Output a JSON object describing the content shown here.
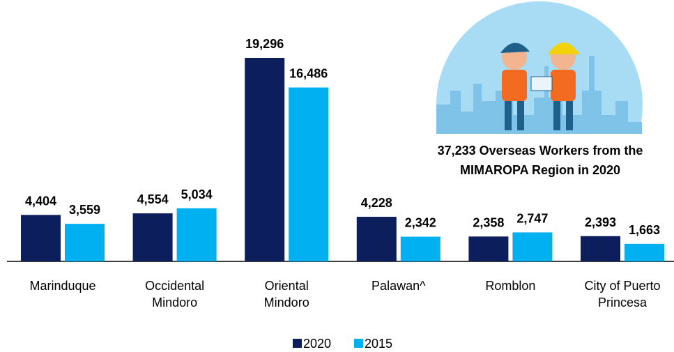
{
  "chart_data": {
    "type": "bar",
    "categories": [
      "Marinduque",
      "Occidental Mindoro",
      "Oriental Mindoro",
      "Palawan^",
      "Romblon",
      "City of Puerto Princesa"
    ],
    "series": [
      {
        "name": "2020",
        "color": "#0c1f5c",
        "values": [
          4404,
          4554,
          19296,
          4228,
          2358,
          2393
        ],
        "value_labels": [
          "4,404",
          "4,554",
          "19,296",
          "4,228",
          "2,358",
          "2,393"
        ]
      },
      {
        "name": "2015",
        "color": "#00b0f0",
        "values": [
          3559,
          5034,
          16486,
          2342,
          2747,
          1663
        ],
        "value_labels": [
          "3,559",
          "5,034",
          "16,486",
          "2,342",
          "2,747",
          "1,663"
        ]
      }
    ],
    "annotation": [
      "37,233 Overseas Workers from the",
      "MIMAROPA Region in 2020"
    ],
    "legend": "bottom"
  }
}
